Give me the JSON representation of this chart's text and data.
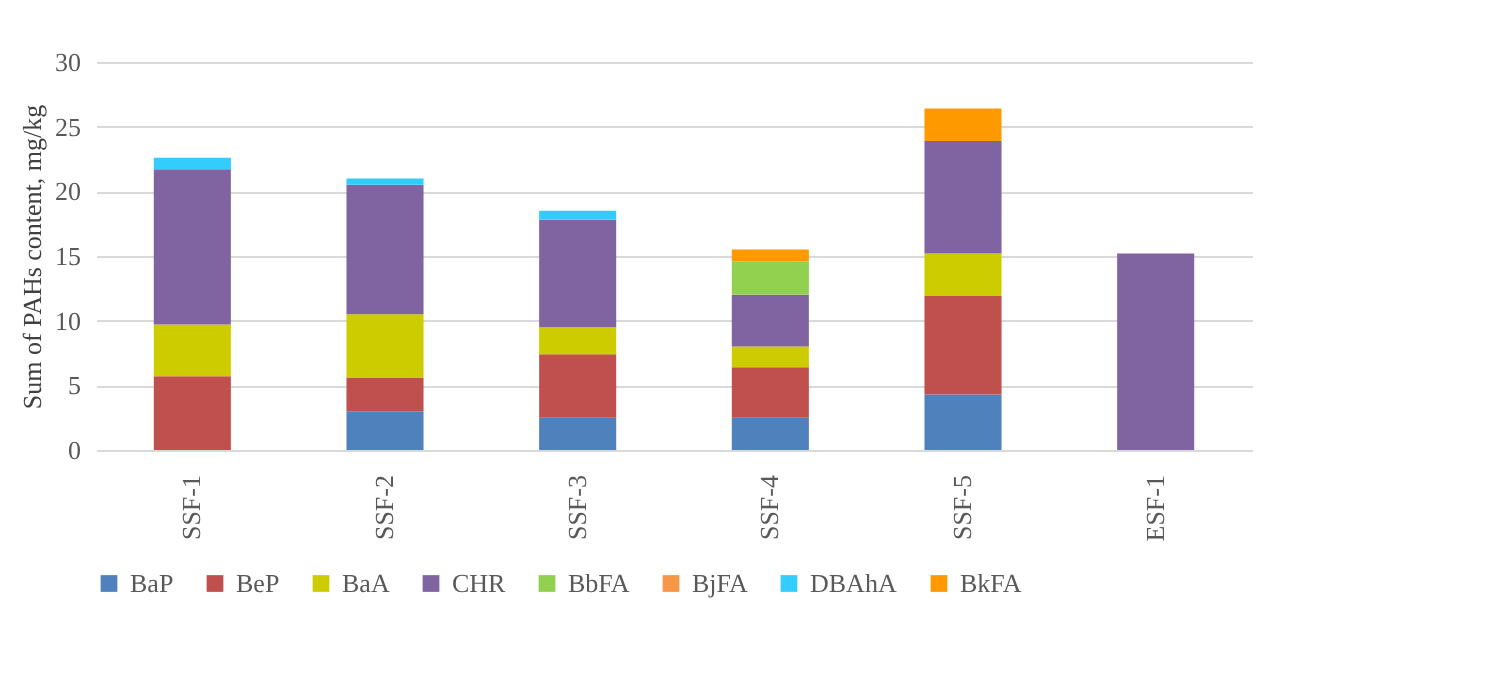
{
  "chart_data": {
    "type": "bar",
    "stacked": true,
    "ylabel": "Sum of PAHs content, mg/kg",
    "categories": [
      "SSF-1",
      "SSF-2",
      "SSF-3",
      "SSF-4",
      "SSF-5",
      "ESF-1"
    ],
    "series": [
      {
        "name": "BaP",
        "color": "#4f81bd",
        "values": [
          null,
          3.0,
          2.5,
          2.5,
          4.3,
          null
        ]
      },
      {
        "name": "BeP",
        "color": "#c0504d",
        "values": [
          5.7,
          2.6,
          4.9,
          3.9,
          7.6,
          null
        ]
      },
      {
        "name": "BaA",
        "color": "#cccc00",
        "values": [
          4.0,
          4.9,
          2.1,
          1.6,
          3.3,
          null
        ]
      },
      {
        "name": "CHR",
        "color": "#8064a2",
        "values": [
          12.0,
          10.0,
          8.3,
          4.0,
          8.7,
          15.2
        ]
      },
      {
        "name": "BbFA",
        "color": "#92d050",
        "values": [
          null,
          null,
          null,
          2.6,
          null,
          null
        ]
      },
      {
        "name": "BjFA",
        "color": "#f79646",
        "values": [
          null,
          null,
          null,
          null,
          null,
          null
        ]
      },
      {
        "name": "DBAhA",
        "color": "#33ccff",
        "values": [
          0.9,
          0.5,
          0.7,
          null,
          null,
          null
        ]
      },
      {
        "name": "BkFA",
        "color": "#ff9900",
        "values": [
          null,
          null,
          null,
          0.9,
          2.5,
          null
        ]
      }
    ],
    "ylim": [
      0,
      30
    ],
    "yticks": [
      0,
      5,
      10,
      15,
      20,
      25,
      30
    ],
    "grid": "y",
    "legend": "bottom"
  }
}
